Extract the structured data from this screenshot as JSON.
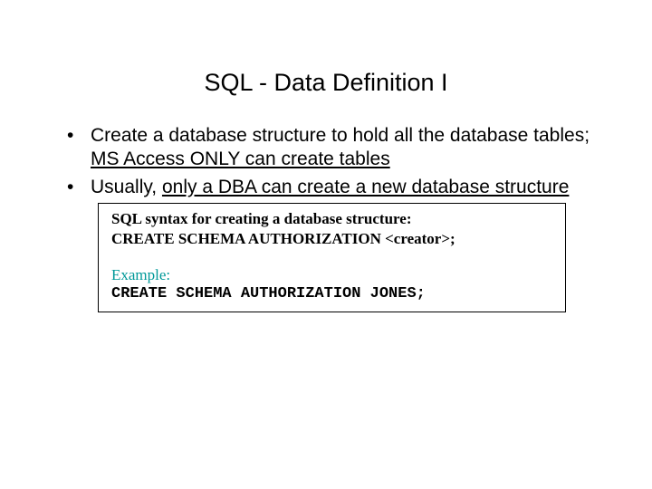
{
  "title": "SQL - Data Definition I",
  "bullets": [
    {
      "prefix": "Create a database structure to hold all the database tables; ",
      "underlined": "MS Access ONLY can create tables",
      "suffix": ""
    },
    {
      "prefix": "Usually, ",
      "underlined": "only a DBA can create a new database structure",
      "suffix": ""
    }
  ],
  "box": {
    "syntax_label": "SQL syntax for creating a database structure:",
    "syntax_code": "CREATE SCHEMA AUTHORIZATION <creator>;",
    "example_label": "Example:",
    "example_code": "CREATE SCHEMA AUTHORIZATION JONES;"
  },
  "colors": {
    "background": "#ffffff",
    "text": "#000000",
    "example_label": "#009999",
    "border": "#000000"
  },
  "fonts": {
    "title_size": 27,
    "bullet_size": 21,
    "box_size": 17
  }
}
